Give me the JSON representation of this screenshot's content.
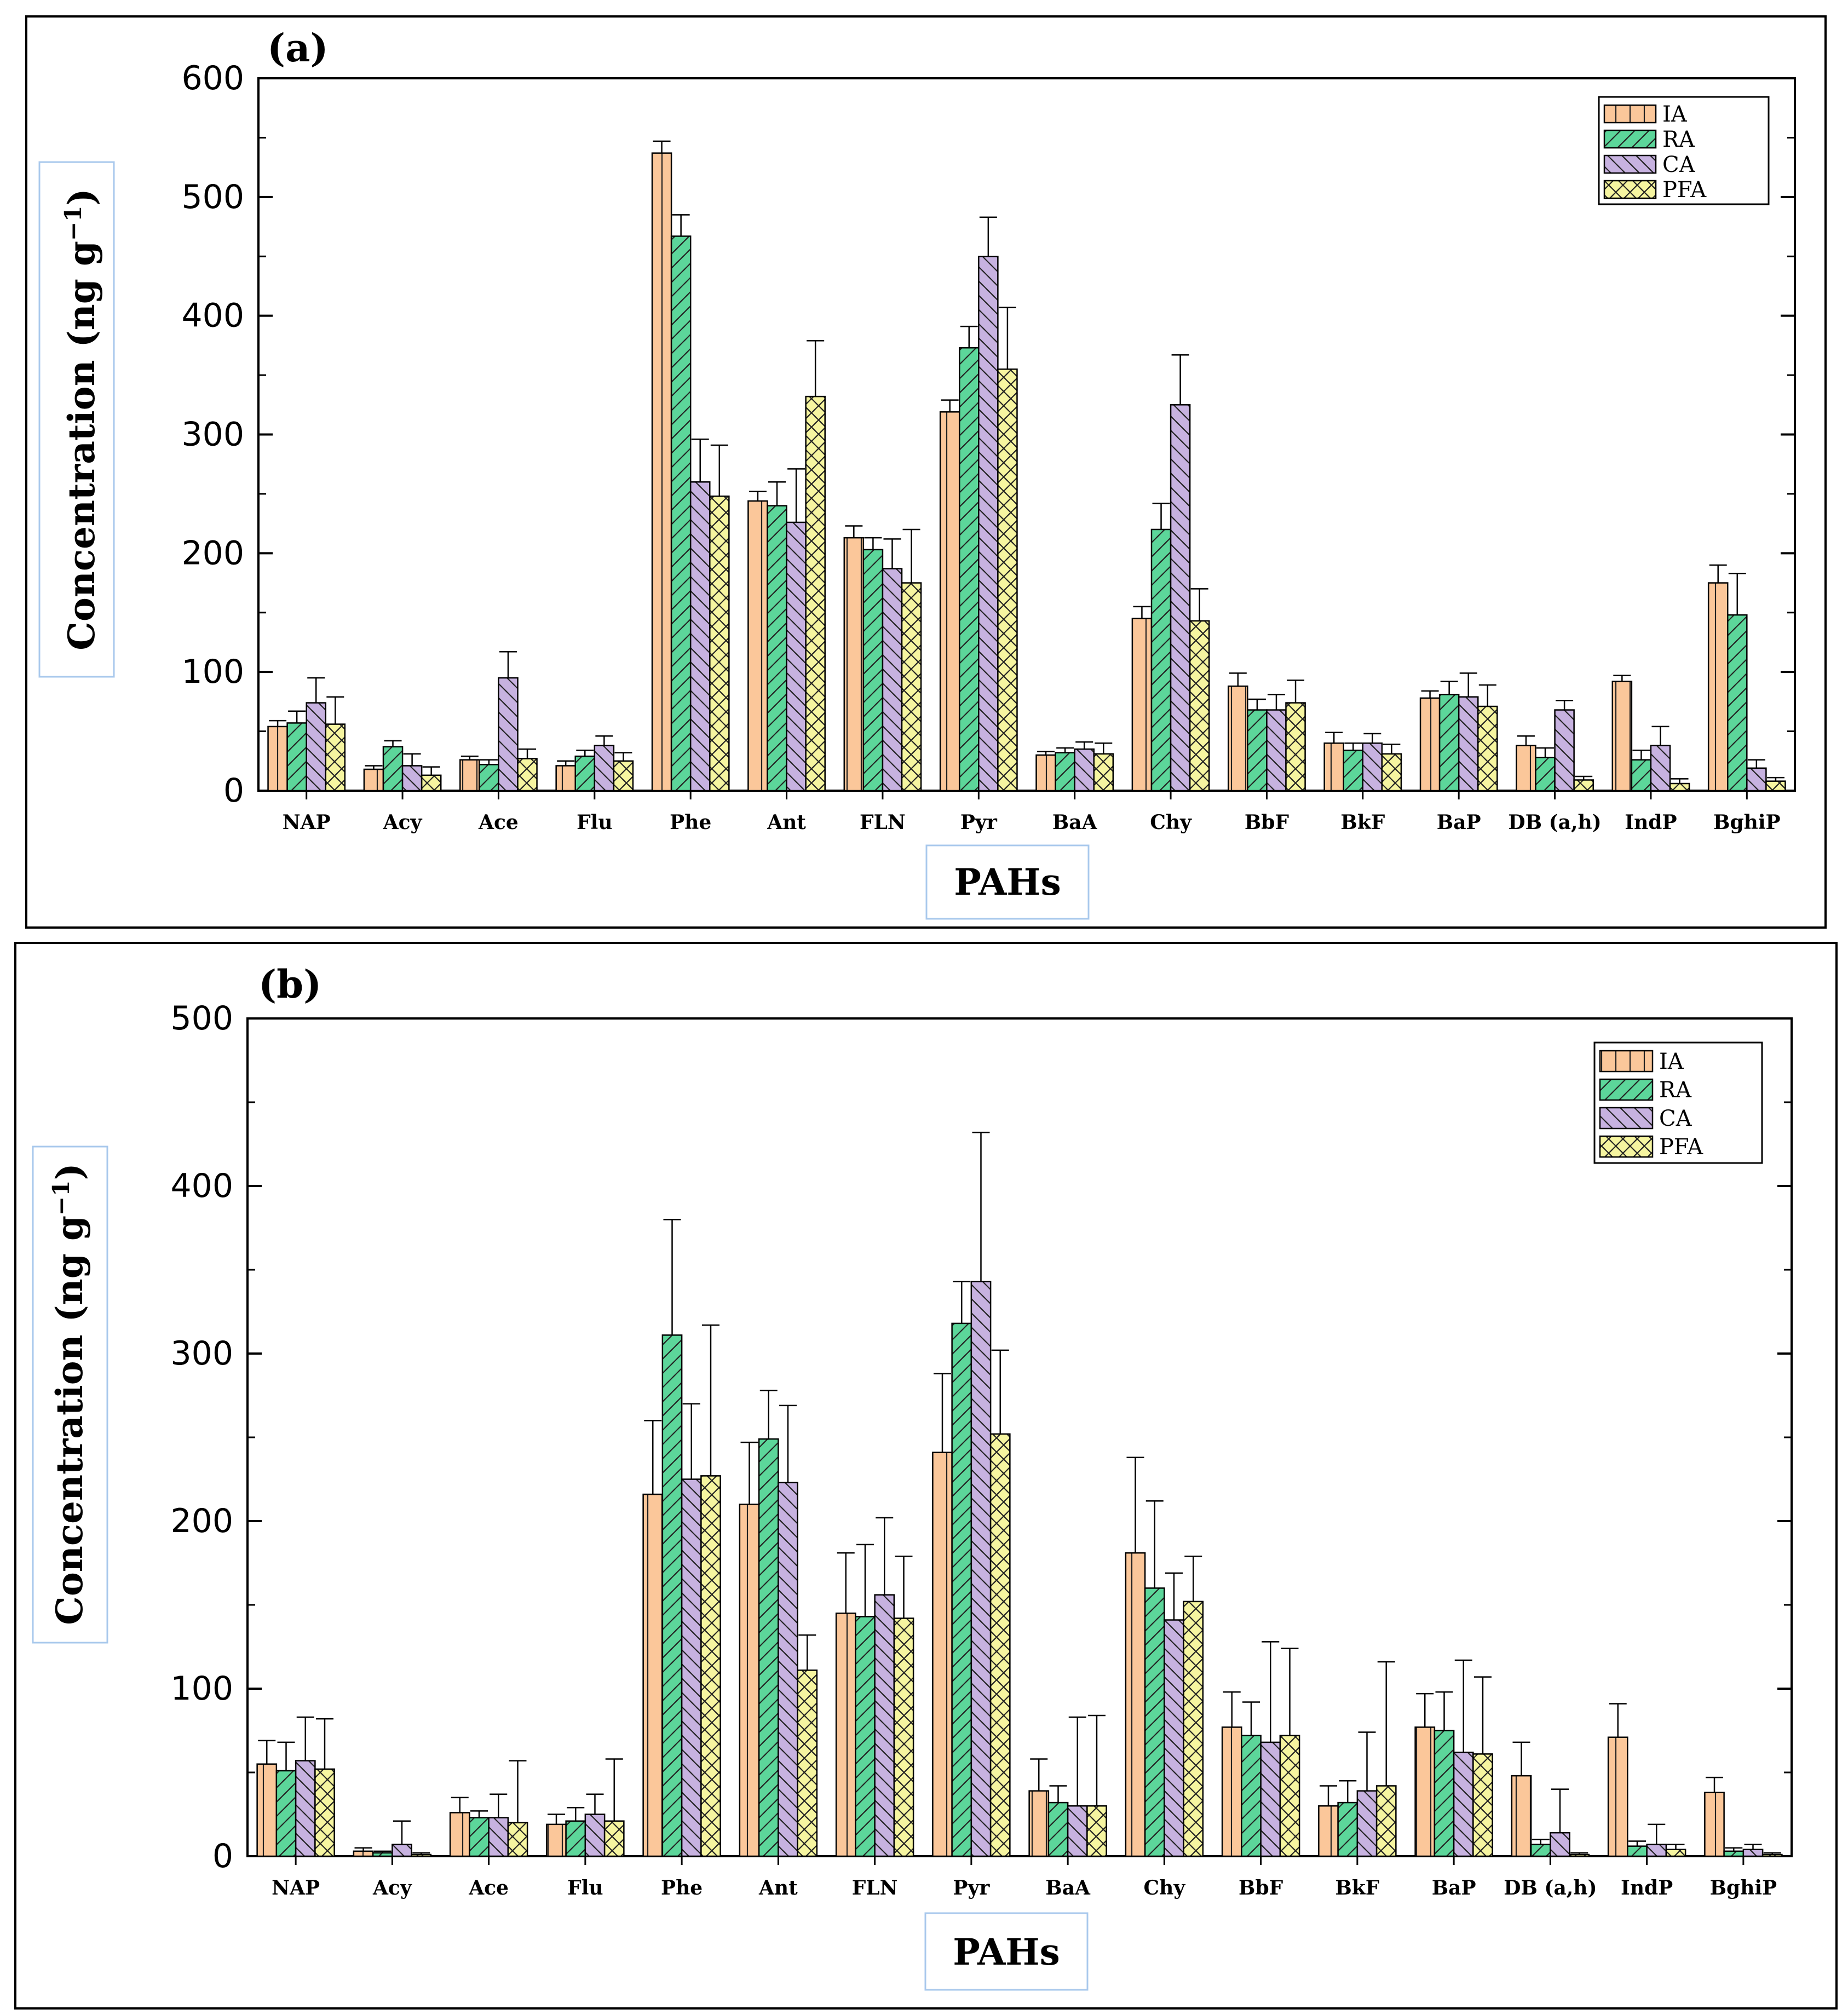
{
  "series_colors": {
    "IA": "#fbc79a",
    "RA": "#5cd69a",
    "CA": "#c7b2e0",
    "PFA": "#f6f5a0"
  },
  "series_patterns": {
    "IA": "vert",
    "RA": "diag-fwd",
    "CA": "diag-back",
    "PFA": "cross"
  },
  "chart_data": [
    {
      "type": "bar",
      "panel_label": "(a)",
      "xlabel": "PAHs",
      "ylabel": "Concentration (ng g",
      "ylabel_sup": "−1",
      "ylabel_close": ")",
      "ylim": [
        0,
        600
      ],
      "yticks": [
        0,
        100,
        200,
        300,
        400,
        500,
        600
      ],
      "legend_position": "top-right",
      "categories": [
        "NAP",
        "Acy",
        "Ace",
        "Flu",
        "Phe",
        "Ant",
        "FLN",
        "Pyr",
        "BaA",
        "Chy",
        "BbF",
        "BkF",
        "BaP",
        "DB (a,h)",
        "IndP",
        "BghiP"
      ],
      "series": [
        {
          "name": "IA",
          "values": [
            54,
            18,
            26,
            21,
            537,
            244,
            213,
            319,
            30,
            145,
            88,
            40,
            78,
            38,
            92,
            175
          ],
          "errors": [
            5,
            3,
            3,
            4,
            10,
            8,
            10,
            10,
            3,
            10,
            11,
            9,
            6,
            8,
            5,
            15
          ]
        },
        {
          "name": "RA",
          "values": [
            57,
            37,
            22,
            29,
            467,
            240,
            203,
            373,
            32,
            220,
            68,
            34,
            81,
            28,
            26,
            148
          ],
          "errors": [
            10,
            5,
            4,
            5,
            18,
            20,
            10,
            18,
            4,
            22,
            9,
            6,
            11,
            8,
            8,
            35
          ]
        },
        {
          "name": "CA",
          "values": [
            74,
            21,
            95,
            38,
            260,
            226,
            187,
            450,
            35,
            325,
            68,
            40,
            79,
            68,
            38,
            19
          ],
          "errors": [
            21,
            10,
            22,
            8,
            36,
            45,
            25,
            33,
            6,
            42,
            13,
            8,
            20,
            8,
            16,
            7
          ]
        },
        {
          "name": "PFA",
          "values": [
            56,
            13,
            27,
            25,
            248,
            332,
            175,
            355,
            31,
            143,
            74,
            31,
            71,
            9,
            6,
            8
          ],
          "errors": [
            23,
            7,
            8,
            7,
            43,
            47,
            45,
            52,
            9,
            27,
            19,
            8,
            18,
            3,
            4,
            3
          ]
        }
      ]
    },
    {
      "type": "bar",
      "panel_label": "(b)",
      "xlabel": "PAHs",
      "ylabel": "Concentration (ng g",
      "ylabel_sup": "−1",
      "ylabel_close": ")",
      "ylim": [
        0,
        500
      ],
      "yticks": [
        0,
        100,
        200,
        300,
        400,
        500
      ],
      "legend_position": "top-right",
      "categories": [
        "NAP",
        "Acy",
        "Ace",
        "Flu",
        "Phe",
        "Ant",
        "FLN",
        "Pyr",
        "BaA",
        "Chy",
        "BbF",
        "BkF",
        "BaP",
        "DB (a,h)",
        "IndP",
        "BghiP"
      ],
      "series": [
        {
          "name": "IA",
          "values": [
            55,
            3,
            26,
            19,
            216,
            210,
            145,
            241,
            39,
            181,
            77,
            30,
            77,
            48,
            71,
            38
          ],
          "errors": [
            14,
            2,
            9,
            6,
            44,
            37,
            36,
            47,
            19,
            57,
            21,
            12,
            20,
            20,
            20,
            9
          ]
        },
        {
          "name": "RA",
          "values": [
            51,
            2,
            23,
            21,
            311,
            249,
            143,
            318,
            32,
            160,
            72,
            32,
            75,
            7,
            6,
            3
          ],
          "errors": [
            17,
            1,
            4,
            8,
            69,
            29,
            43,
            25,
            10,
            52,
            20,
            13,
            23,
            3,
            3,
            2
          ]
        },
        {
          "name": "CA",
          "values": [
            57,
            7,
            23,
            25,
            225,
            223,
            156,
            343,
            30,
            141,
            68,
            39,
            62,
            14,
            7,
            4
          ],
          "errors": [
            26,
            14,
            14,
            12,
            45,
            46,
            46,
            89,
            53,
            28,
            60,
            35,
            55,
            26,
            12,
            3
          ]
        },
        {
          "name": "PFA",
          "values": [
            52,
            1,
            20,
            21,
            227,
            111,
            142,
            252,
            30,
            152,
            72,
            42,
            61,
            1,
            4,
            1
          ],
          "errors": [
            30,
            1,
            37,
            37,
            90,
            21,
            37,
            50,
            54,
            27,
            52,
            74,
            46,
            1,
            3,
            1
          ]
        }
      ]
    }
  ]
}
